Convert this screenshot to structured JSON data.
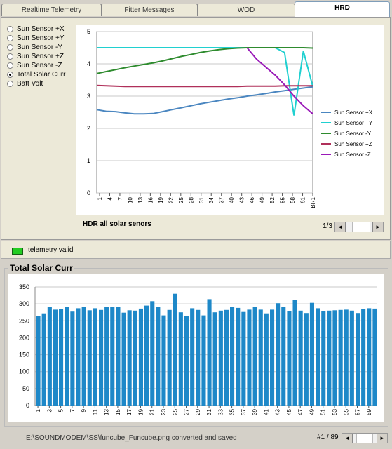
{
  "tabs": [
    "Realtime Telemetry",
    "Fitter Messages",
    "WOD",
    "HRD"
  ],
  "active_tab": "HRD",
  "radio_options": [
    "Sun Sensor +X",
    "Sun Sensor +Y",
    "Sun Sensor -Y",
    "Sun Sensor +Z",
    "Sun Sensor -Z",
    "Total Solar Curr",
    "Batt Volt"
  ],
  "radio_selected": "Total Solar Curr",
  "caption": "HDR all solar senors",
  "pager": "1/3",
  "status": {
    "led_color": "#22cc22",
    "label": "telemetry valid"
  },
  "group_title": "Total Solar Curr",
  "footer": {
    "message": "E:\\SOUNDMODEM\\SS\\funcube_Funcube.png converted and saved",
    "page": "#1 / 89"
  },
  "chart_data": [
    {
      "type": "line",
      "ylim": [
        0,
        5
      ],
      "y_ticks": [
        "0",
        "1",
        "2",
        "3",
        "4",
        "5"
      ],
      "x_ticks": [
        "1",
        "4",
        "7",
        "10",
        "13",
        "16",
        "19",
        "22",
        "25",
        "28",
        "31",
        "34",
        "37",
        "40",
        "43",
        "46",
        "49",
        "52",
        "55",
        "58",
        "61",
        "BR1"
      ],
      "legend_position": "right",
      "series": [
        {
          "name": "Sun Sensor +X",
          "color": "#4a86c0",
          "values": [
            2.58,
            2.53,
            2.52,
            2.48,
            2.45,
            2.45,
            2.46,
            2.52,
            2.58,
            2.64,
            2.7,
            2.76,
            2.81,
            2.86,
            2.91,
            2.95,
            3.0,
            3.04,
            3.08,
            3.13,
            3.17,
            3.21,
            3.25,
            3.29
          ]
        },
        {
          "name": "Sun Sensor +Y",
          "color": "#20d0d0",
          "values": [
            4.5,
            4.5,
            4.5,
            4.5,
            4.5,
            4.5,
            4.5,
            4.5,
            4.5,
            4.5,
            4.5,
            4.5,
            4.5,
            4.5,
            4.5,
            4.5,
            4.5,
            4.5,
            4.5,
            4.5,
            4.35,
            2.4,
            4.4,
            3.3
          ]
        },
        {
          "name": "Sun Sensor -Y",
          "color": "#2e8b2e",
          "values": [
            3.7,
            3.76,
            3.82,
            3.88,
            3.93,
            3.98,
            4.03,
            4.09,
            4.16,
            4.23,
            4.29,
            4.35,
            4.4,
            4.44,
            4.47,
            4.49,
            4.5,
            4.5,
            4.5,
            4.5,
            4.5,
            4.5,
            4.5,
            4.49
          ]
        },
        {
          "name": "Sun Sensor +Z",
          "color": "#b0305a",
          "values": [
            3.33,
            3.32,
            3.31,
            3.3,
            3.3,
            3.3,
            3.3,
            3.3,
            3.3,
            3.3,
            3.3,
            3.3,
            3.3,
            3.3,
            3.3,
            3.3,
            3.31,
            3.31,
            3.31,
            3.31,
            3.32,
            3.32,
            3.32,
            3.32
          ]
        },
        {
          "name": "Sun Sensor -Z",
          "color": "#9a1ab8",
          "values": [
            null,
            null,
            null,
            null,
            null,
            null,
            null,
            null,
            null,
            null,
            null,
            null,
            null,
            null,
            null,
            null,
            4.5,
            4.15,
            3.9,
            3.65,
            3.35,
            3.0,
            2.7,
            2.45
          ]
        }
      ]
    },
    {
      "type": "bar",
      "color": "#1e88c8",
      "ylim": [
        0,
        350
      ],
      "y_ticks": [
        "0",
        "50",
        "100",
        "150",
        "200",
        "250",
        "300",
        "350"
      ],
      "x_ticks": [
        "1",
        "3",
        "5",
        "7",
        "9",
        "11",
        "13",
        "15",
        "17",
        "19",
        "21",
        "23",
        "25",
        "27",
        "29",
        "31",
        "33",
        "35",
        "37",
        "39",
        "41",
        "43",
        "45",
        "47",
        "49",
        "51",
        "53",
        "55",
        "57",
        "59"
      ],
      "values": [
        265,
        272,
        291,
        283,
        284,
        291,
        277,
        287,
        292,
        281,
        287,
        282,
        290,
        290,
        292,
        274,
        281,
        280,
        286,
        295,
        308,
        290,
        266,
        282,
        330,
        275,
        264,
        287,
        282,
        266,
        314,
        275,
        280,
        282,
        290,
        288,
        276,
        283,
        292,
        283,
        272,
        283,
        302,
        292,
        278,
        312,
        280,
        273,
        303,
        287,
        279,
        280,
        281,
        282,
        283,
        280,
        273,
        284,
        287,
        286
      ]
    }
  ]
}
